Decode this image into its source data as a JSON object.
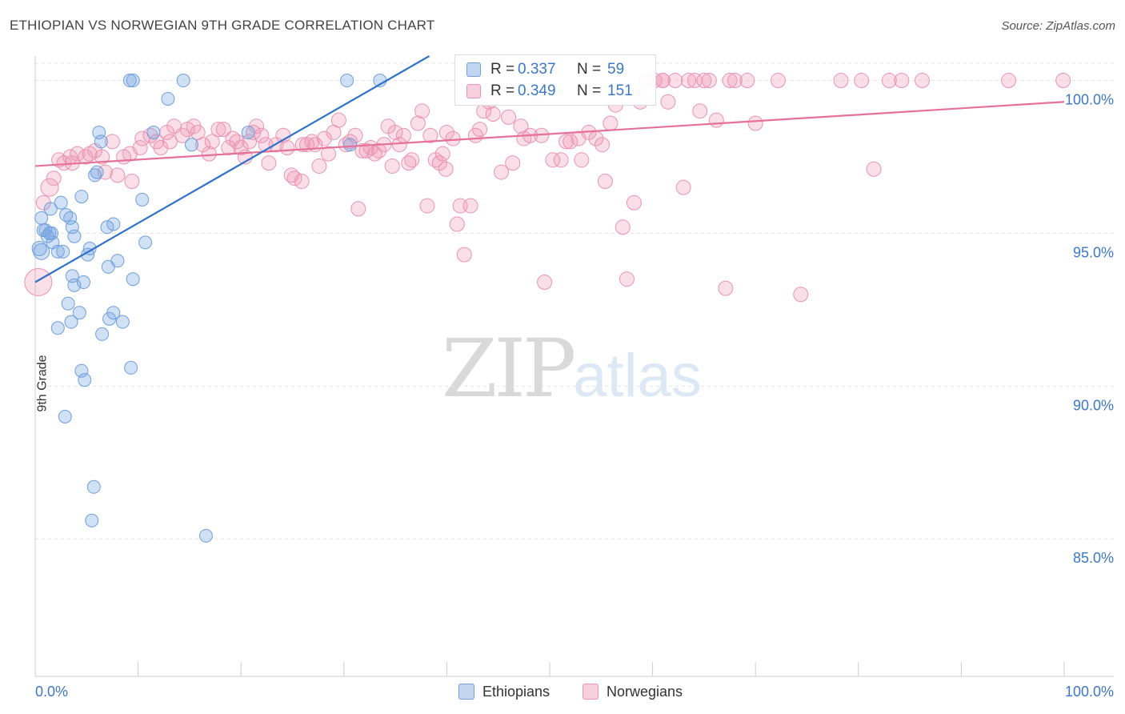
{
  "title": "ETHIOPIAN VS NORWEGIAN 9TH GRADE CORRELATION CHART",
  "source": "Source: ZipAtlas.com",
  "watermark": {
    "zip": "ZIP",
    "atlas": "atlas"
  },
  "legend": {
    "rows": [
      {
        "r_label": "R =",
        "r_value": "0.337",
        "n_label": "N =",
        "n_value": "59"
      },
      {
        "r_label": "R =",
        "r_value": "0.349",
        "n_label": "N =",
        "n_value": "151"
      }
    ]
  },
  "bottom_legend": {
    "ethiopians": "Ethiopians",
    "norwegians": "Norwegians"
  },
  "colors": {
    "blue_fill": "rgba(120,165,225,0.35)",
    "blue_stroke": "#6f9fdc",
    "blue_line": "#2f72c9",
    "pink_fill": "rgba(240,150,180,0.30)",
    "pink_stroke": "#eb93b1",
    "pink_line": "#e5719a",
    "tick_text": "#3b78c8",
    "grid": "#e3e3e3"
  },
  "chart_data": {
    "type": "scatter",
    "title": "ETHIOPIAN VS NORWEGIAN 9TH GRADE CORRELATION CHART",
    "xlabel": "",
    "ylabel": "9th Grade",
    "xlim": [
      0,
      100
    ],
    "ylim": [
      80.5,
      100.8
    ],
    "x_tick_labels": [
      "0.0%",
      "100.0%"
    ],
    "y_ticks": [
      85,
      90,
      95,
      100
    ],
    "y_tick_labels": [
      "85.0%",
      "90.0%",
      "95.0%",
      "100.0%"
    ],
    "series": [
      {
        "name": "Ethiopians",
        "r": 0.337,
        "n": 59,
        "trend": {
          "x1": 0,
          "y1": 93.4,
          "x2": 38.3,
          "y2": 100.8
        },
        "points": [
          [
            0.6,
            95.5
          ],
          [
            0.4,
            94.5
          ],
          [
            0.6,
            94.4
          ],
          [
            1.0,
            95.1
          ],
          [
            1.2,
            94.9
          ],
          [
            1.6,
            95.0
          ],
          [
            1.7,
            94.7
          ],
          [
            2.2,
            94.4
          ],
          [
            1.5,
            95.8
          ],
          [
            2.5,
            96.0
          ],
          [
            3.0,
            95.6
          ],
          [
            3.4,
            95.5
          ],
          [
            3.8,
            94.9
          ],
          [
            4.5,
            96.2
          ],
          [
            3.6,
            95.2
          ],
          [
            2.7,
            94.4
          ],
          [
            5.1,
            94.3
          ],
          [
            5.3,
            94.5
          ],
          [
            5.8,
            96.9
          ],
          [
            6.0,
            97.0
          ],
          [
            6.2,
            98.3
          ],
          [
            6.4,
            98.0
          ],
          [
            7.0,
            95.2
          ],
          [
            7.6,
            95.3
          ],
          [
            9.5,
            100.0
          ],
          [
            9.2,
            100.0
          ],
          [
            14.4,
            100.0
          ],
          [
            12.9,
            99.4
          ],
          [
            10.7,
            94.7
          ],
          [
            9.5,
            93.5
          ],
          [
            7.1,
            93.9
          ],
          [
            8.0,
            94.1
          ],
          [
            3.6,
            93.6
          ],
          [
            4.7,
            93.4
          ],
          [
            3.8,
            93.3
          ],
          [
            3.2,
            92.7
          ],
          [
            4.3,
            92.4
          ],
          [
            3.5,
            92.1
          ],
          [
            7.2,
            92.2
          ],
          [
            7.6,
            92.4
          ],
          [
            8.5,
            92.1
          ],
          [
            2.2,
            91.9
          ],
          [
            6.5,
            91.7
          ],
          [
            4.5,
            90.5
          ],
          [
            4.8,
            90.2
          ],
          [
            9.3,
            90.6
          ],
          [
            2.9,
            89.0
          ],
          [
            5.7,
            86.7
          ],
          [
            5.5,
            85.6
          ],
          [
            16.6,
            85.1
          ],
          [
            10.4,
            96.1
          ],
          [
            11.5,
            98.3
          ],
          [
            15.2,
            97.9
          ],
          [
            20.7,
            98.3
          ],
          [
            30.6,
            97.9
          ],
          [
            30.3,
            100.0
          ],
          [
            33.5,
            100.0
          ],
          [
            0.8,
            95.1
          ],
          [
            1.4,
            95.0
          ]
        ]
      },
      {
        "name": "Norwegians",
        "r": 0.349,
        "n": 151,
        "trend": {
          "x1": 0,
          "y1": 97.2,
          "x2": 100,
          "y2": 99.3
        },
        "points": [
          [
            0.3,
            93.4
          ],
          [
            0.8,
            96.0
          ],
          [
            1.4,
            96.5
          ],
          [
            1.8,
            96.8
          ],
          [
            2.3,
            97.4
          ],
          [
            2.8,
            97.3
          ],
          [
            3.4,
            97.5
          ],
          [
            3.6,
            97.3
          ],
          [
            4.1,
            97.6
          ],
          [
            4.9,
            97.5
          ],
          [
            5.3,
            97.6
          ],
          [
            5.8,
            97.7
          ],
          [
            6.5,
            97.5
          ],
          [
            6.8,
            97.0
          ],
          [
            7.5,
            98.0
          ],
          [
            8.0,
            96.9
          ],
          [
            8.6,
            97.5
          ],
          [
            9.2,
            97.6
          ],
          [
            9.4,
            96.7
          ],
          [
            10.2,
            97.8
          ],
          [
            10.4,
            98.1
          ],
          [
            11.2,
            98.2
          ],
          [
            11.8,
            98.0
          ],
          [
            12.2,
            97.8
          ],
          [
            12.8,
            98.3
          ],
          [
            13.1,
            98.0
          ],
          [
            13.5,
            98.5
          ],
          [
            14.3,
            98.2
          ],
          [
            14.8,
            98.4
          ],
          [
            15.4,
            98.5
          ],
          [
            15.8,
            98.3
          ],
          [
            16.3,
            97.9
          ],
          [
            16.9,
            97.6
          ],
          [
            17.2,
            98.0
          ],
          [
            17.8,
            98.4
          ],
          [
            18.3,
            98.4
          ],
          [
            18.8,
            97.8
          ],
          [
            19.2,
            98.1
          ],
          [
            19.6,
            98.0
          ],
          [
            20.0,
            97.8
          ],
          [
            20.4,
            97.5
          ],
          [
            20.8,
            98.0
          ],
          [
            21.2,
            98.3
          ],
          [
            21.5,
            98.5
          ],
          [
            22.0,
            98.2
          ],
          [
            22.4,
            97.9
          ],
          [
            22.7,
            97.3
          ],
          [
            23.4,
            97.9
          ],
          [
            24.1,
            98.2
          ],
          [
            24.5,
            97.8
          ],
          [
            24.9,
            96.9
          ],
          [
            25.2,
            96.8
          ],
          [
            25.9,
            96.7
          ],
          [
            26.4,
            97.9
          ],
          [
            26.9,
            98.0
          ],
          [
            27.2,
            97.9
          ],
          [
            27.6,
            97.2
          ],
          [
            28.1,
            98.1
          ],
          [
            28.5,
            97.6
          ],
          [
            29.0,
            98.3
          ],
          [
            29.5,
            98.7
          ],
          [
            30.2,
            97.9
          ],
          [
            30.6,
            98.0
          ],
          [
            31.1,
            98.2
          ],
          [
            31.4,
            95.8
          ],
          [
            31.8,
            97.7
          ],
          [
            32.2,
            97.7
          ],
          [
            32.6,
            97.8
          ],
          [
            33.0,
            97.6
          ],
          [
            33.4,
            97.7
          ],
          [
            33.9,
            97.9
          ],
          [
            34.3,
            98.5
          ],
          [
            34.7,
            97.2
          ],
          [
            35.0,
            98.3
          ],
          [
            35.4,
            97.9
          ],
          [
            35.8,
            98.2
          ],
          [
            36.3,
            97.3
          ],
          [
            36.6,
            97.4
          ],
          [
            37.2,
            98.6
          ],
          [
            37.6,
            99.0
          ],
          [
            38.1,
            95.9
          ],
          [
            38.4,
            98.2
          ],
          [
            38.9,
            97.4
          ],
          [
            39.3,
            97.3
          ],
          [
            39.6,
            97.6
          ],
          [
            39.9,
            97.1
          ],
          [
            40.6,
            98.1
          ],
          [
            41.0,
            95.3
          ],
          [
            41.3,
            95.9
          ],
          [
            41.7,
            94.3
          ],
          [
            42.3,
            95.9
          ],
          [
            42.8,
            98.2
          ],
          [
            43.2,
            98.4
          ],
          [
            43.6,
            99.0
          ],
          [
            44.1,
            99.3
          ],
          [
            44.5,
            98.9
          ],
          [
            45.3,
            97.0
          ],
          [
            46.0,
            98.8
          ],
          [
            46.4,
            97.3
          ],
          [
            47.2,
            98.5
          ],
          [
            47.5,
            98.1
          ],
          [
            48.1,
            98.2
          ],
          [
            48.8,
            99.6
          ],
          [
            49.2,
            98.2
          ],
          [
            49.5,
            93.4
          ],
          [
            50.3,
            97.4
          ],
          [
            51.1,
            97.4
          ],
          [
            51.6,
            98.0
          ],
          [
            52.0,
            98.0
          ],
          [
            52.8,
            98.1
          ],
          [
            53.1,
            97.4
          ],
          [
            53.8,
            98.3
          ],
          [
            54.5,
            98.1
          ],
          [
            55.1,
            97.9
          ],
          [
            55.4,
            96.7
          ],
          [
            55.9,
            98.6
          ],
          [
            56.4,
            99.2
          ],
          [
            57.1,
            95.2
          ],
          [
            57.5,
            93.5
          ],
          [
            58.2,
            96.0
          ],
          [
            58.8,
            99.3
          ],
          [
            59.4,
            100.0
          ],
          [
            60.2,
            100.0
          ],
          [
            61.0,
            100.0
          ],
          [
            61.5,
            99.3
          ],
          [
            62.2,
            100.0
          ],
          [
            63.0,
            96.5
          ],
          [
            63.5,
            100.0
          ],
          [
            64.1,
            100.0
          ],
          [
            64.6,
            99.0
          ],
          [
            65.0,
            100.0
          ],
          [
            65.5,
            100.0
          ],
          [
            66.2,
            98.7
          ],
          [
            67.1,
            93.2
          ],
          [
            67.5,
            100.0
          ],
          [
            68.0,
            100.0
          ],
          [
            69.2,
            100.0
          ],
          [
            70.0,
            98.6
          ],
          [
            72.2,
            100.0
          ],
          [
            74.4,
            93.0
          ],
          [
            78.3,
            100.0
          ],
          [
            80.3,
            100.0
          ],
          [
            81.5,
            97.1
          ],
          [
            83.0,
            100.0
          ],
          [
            84.2,
            100.0
          ],
          [
            86.2,
            100.0
          ],
          [
            94.6,
            100.0
          ],
          [
            99.9,
            100.0
          ],
          [
            40.0,
            98.3
          ],
          [
            26.0,
            97.9
          ],
          [
            61.0,
            100.0
          ]
        ]
      }
    ]
  }
}
